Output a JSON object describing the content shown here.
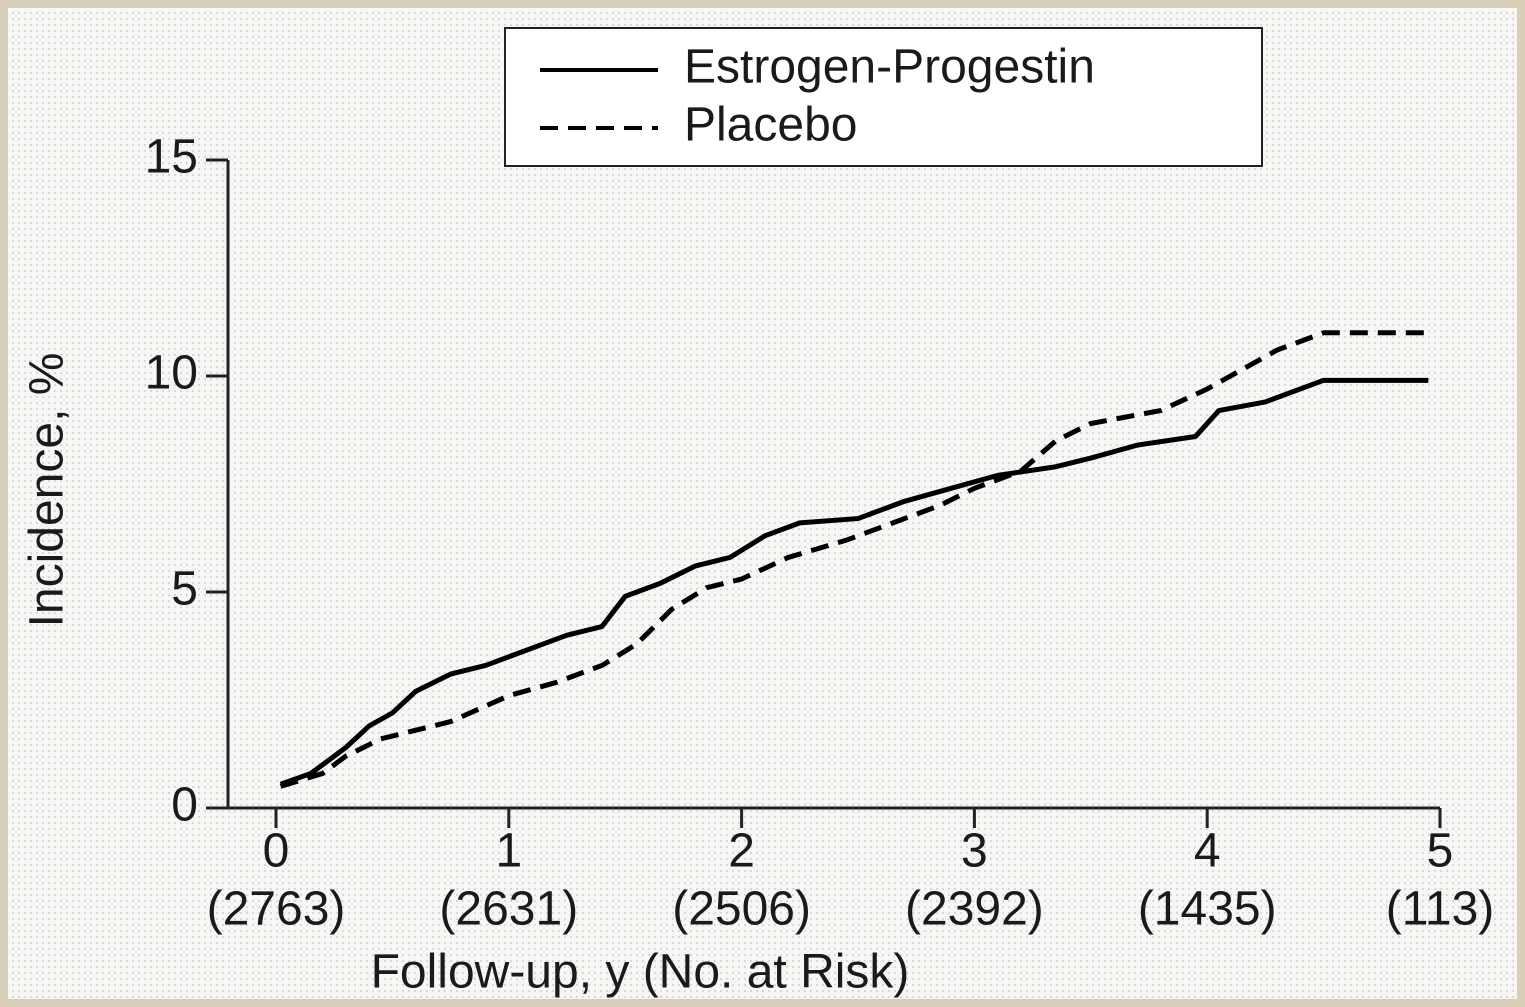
{
  "chart_data": {
    "type": "line",
    "xlabel": "Follow-up, y (No. at Risk)",
    "ylabel": "Incidence, %",
    "xlim": [
      0,
      5
    ],
    "xticks": [
      0,
      1,
      2,
      3,
      4,
      5
    ],
    "at_risk_labels": [
      "(2763)",
      "(2631)",
      "(2506)",
      "(2392)",
      "(1435)",
      "(113)"
    ],
    "ylim": [
      0,
      15
    ],
    "yticks": [
      0,
      5,
      10,
      15
    ],
    "legend": "top",
    "series": [
      {
        "name": "Estrogen-Progestin",
        "color": "#000000",
        "dash": "solid",
        "x": [
          0.02,
          0.15,
          0.3,
          0.4,
          0.5,
          0.6,
          0.75,
          0.9,
          1.0,
          1.15,
          1.25,
          1.4,
          1.5,
          1.65,
          1.8,
          1.95,
          2.1,
          2.25,
          2.5,
          2.7,
          2.9,
          3.1,
          3.35,
          3.5,
          3.7,
          3.95,
          4.05,
          4.25,
          4.5,
          4.95
        ],
        "values": [
          0.55,
          0.8,
          1.4,
          1.9,
          2.2,
          2.7,
          3.1,
          3.3,
          3.5,
          3.8,
          4.0,
          4.2,
          4.9,
          5.2,
          5.6,
          5.8,
          6.3,
          6.6,
          6.7,
          7.1,
          7.4,
          7.7,
          7.9,
          8.1,
          8.4,
          8.6,
          9.2,
          9.4,
          9.9,
          9.9
        ]
      },
      {
        "name": "Placebo",
        "color": "#000000",
        "dash": "dashed",
        "x": [
          0.02,
          0.2,
          0.3,
          0.45,
          0.75,
          1.0,
          1.2,
          1.4,
          1.55,
          1.7,
          1.85,
          2.0,
          2.2,
          2.45,
          2.65,
          2.85,
          3.0,
          3.2,
          3.35,
          3.5,
          3.8,
          4.0,
          4.3,
          4.5,
          4.95
        ],
        "values": [
          0.5,
          0.8,
          1.2,
          1.6,
          2.0,
          2.6,
          2.9,
          3.3,
          3.8,
          4.6,
          5.1,
          5.3,
          5.8,
          6.2,
          6.6,
          7.0,
          7.4,
          7.8,
          8.5,
          8.9,
          9.2,
          9.7,
          10.6,
          11.0,
          11.0
        ]
      }
    ]
  }
}
